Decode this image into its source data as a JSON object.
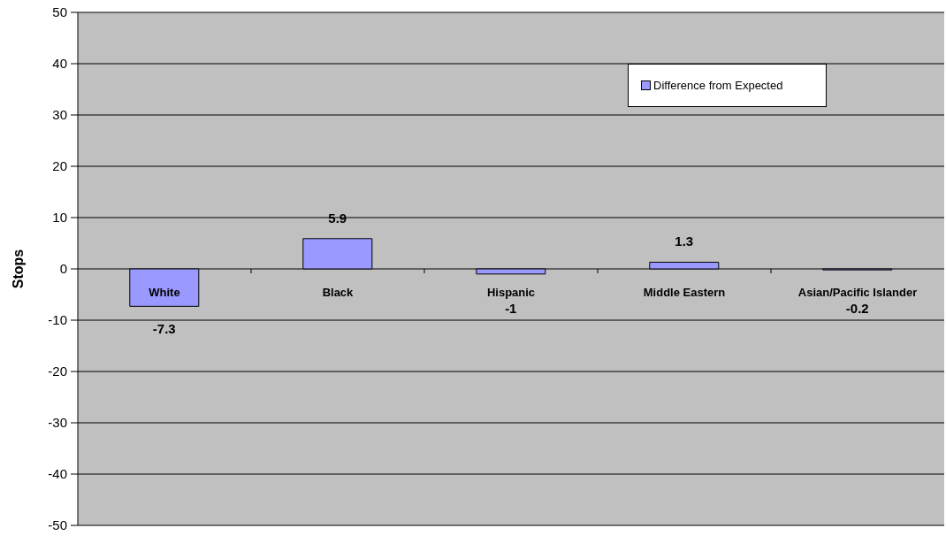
{
  "chart_data": {
    "type": "bar",
    "ylabel": "Stops",
    "categories": [
      "White",
      "Black",
      "Hispanic",
      "Middle Eastern",
      "Asian/Pacific Islander"
    ],
    "series": [
      {
        "name": "Difference from Expected",
        "color": "#9999ff",
        "values": [
          -7.3,
          5.9,
          -1,
          1.3,
          -0.2
        ]
      }
    ],
    "ylim": [
      -50,
      50
    ],
    "yticks": [
      -50,
      -40,
      -30,
      -20,
      -10,
      0,
      10,
      20,
      30,
      40,
      50
    ],
    "grid": "y",
    "legend": "top right",
    "data_labels": true
  }
}
